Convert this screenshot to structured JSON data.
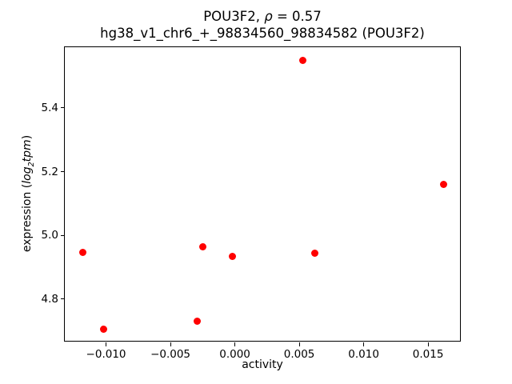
{
  "chart_data": {
    "type": "scatter",
    "title": {
      "line1_part1": "POU3F2, ",
      "line1_rho": "ρ",
      "line1_part2": " = 0.57",
      "line2": "hg38_v1_chr6_+_98834560_98834582 (POU3F2)"
    },
    "xlabel": "activity",
    "ylabel_parts": {
      "prefix": "expression (",
      "func": "log",
      "sub": "2",
      "arg": "tpm",
      "suffix": ")"
    },
    "marker_color": "#ff0000",
    "axis_color": "#000000",
    "grid": false,
    "legend": "none",
    "xlim": [
      -0.0132,
      0.0176
    ],
    "ylim": [
      4.663,
      5.592
    ],
    "xticks": [
      {
        "value": -0.01,
        "label": "−0.010"
      },
      {
        "value": -0.005,
        "label": "−0.005"
      },
      {
        "value": 0.0,
        "label": "0.000"
      },
      {
        "value": 0.005,
        "label": "0.005"
      },
      {
        "value": 0.01,
        "label": "0.010"
      },
      {
        "value": 0.015,
        "label": "0.015"
      }
    ],
    "yticks": [
      {
        "value": 4.8,
        "label": "4.8"
      },
      {
        "value": 5.0,
        "label": "5.0"
      },
      {
        "value": 5.2,
        "label": "5.2"
      },
      {
        "value": 5.4,
        "label": "5.4"
      }
    ],
    "points": [
      {
        "x": -0.0118,
        "y": 4.946
      },
      {
        "x": -0.0102,
        "y": 4.705
      },
      {
        "x": -0.0029,
        "y": 4.73
      },
      {
        "x": -0.0025,
        "y": 4.963
      },
      {
        "x": -0.0002,
        "y": 4.933
      },
      {
        "x": 0.0053,
        "y": 5.55
      },
      {
        "x": 0.0062,
        "y": 4.944
      },
      {
        "x": 0.0162,
        "y": 5.161
      }
    ]
  }
}
